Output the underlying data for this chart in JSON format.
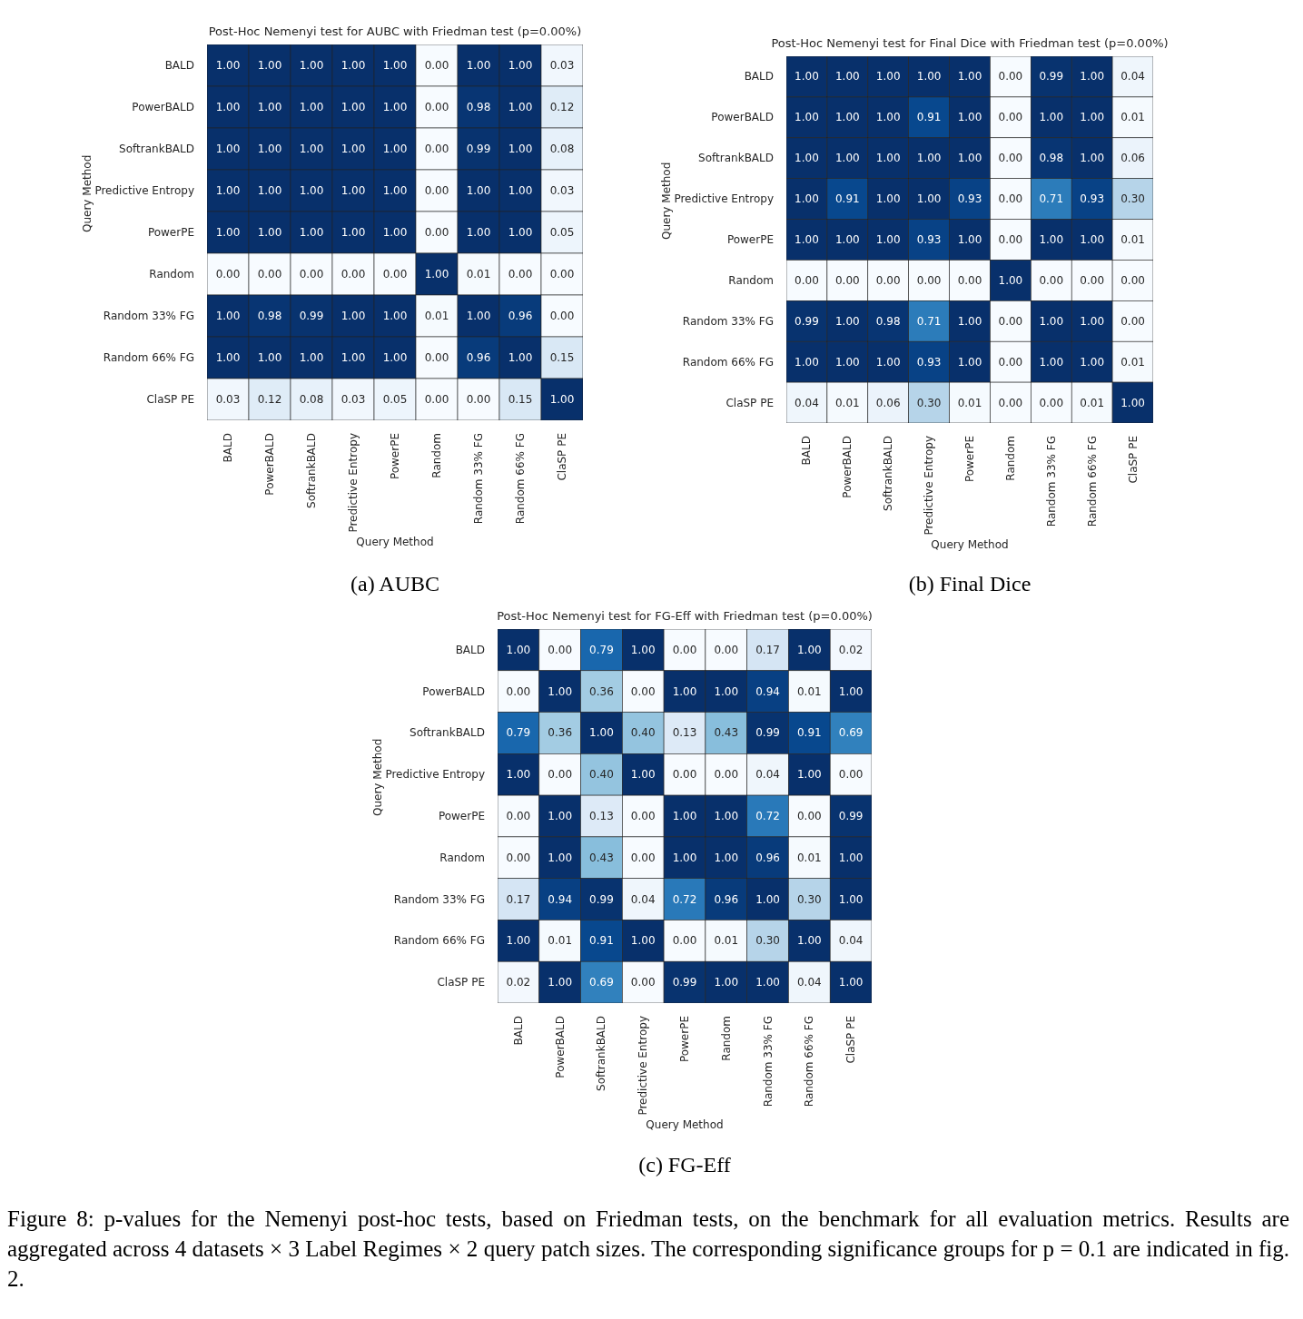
{
  "chart_data": [
    {
      "type": "heatmap",
      "title": "Post-Hoc Nemenyi test for AUBC with Friedman test (p=0.00%)",
      "xlabel": "Query Method",
      "ylabel": "Query Method",
      "data_labels": true,
      "categories": [
        "BALD",
        "PowerBALD",
        "SoftrankBALD",
        "Predictive Entropy",
        "PowerPE",
        "Random",
        "Random 33% FG",
        "Random 66% FG",
        "ClaSP PE"
      ],
      "y_categories": [
        "BALD",
        "PowerBALD",
        "SoftrankBALD",
        "Predictive Entropy",
        "PowerPE",
        "Random",
        "Random 33% FG",
        "Random 66% FG",
        "ClaSP PE"
      ],
      "cells": [
        [
          1.0,
          1.0,
          1.0,
          1.0,
          1.0,
          0.0,
          1.0,
          1.0,
          0.03
        ],
        [
          1.0,
          1.0,
          1.0,
          1.0,
          1.0,
          0.0,
          0.98,
          1.0,
          0.12
        ],
        [
          1.0,
          1.0,
          1.0,
          1.0,
          1.0,
          0.0,
          0.99,
          1.0,
          0.08
        ],
        [
          1.0,
          1.0,
          1.0,
          1.0,
          1.0,
          0.0,
          1.0,
          1.0,
          0.03
        ],
        [
          1.0,
          1.0,
          1.0,
          1.0,
          1.0,
          0.0,
          1.0,
          1.0,
          0.05
        ],
        [
          0.0,
          0.0,
          0.0,
          0.0,
          0.0,
          1.0,
          0.01,
          0.0,
          0.0
        ],
        [
          1.0,
          0.98,
          0.99,
          1.0,
          1.0,
          0.01,
          1.0,
          0.96,
          0.0
        ],
        [
          1.0,
          1.0,
          1.0,
          1.0,
          1.0,
          0.0,
          0.96,
          1.0,
          0.15
        ],
        [
          0.03,
          0.12,
          0.08,
          0.03,
          0.05,
          0.0,
          0.0,
          0.15,
          1.0
        ]
      ],
      "cell_labels": [
        [
          "1.00",
          "1.00",
          "1.00",
          "1.00",
          "1.00",
          "0.00",
          "1.00",
          "1.00",
          "0.03"
        ],
        [
          "1.00",
          "1.00",
          "1.00",
          "1.00",
          "1.00",
          "0.00",
          "0.98",
          "1.00",
          "0.12"
        ],
        [
          "1.00",
          "1.00",
          "1.00",
          "1.00",
          "1.00",
          "0.00",
          "0.99",
          "1.00",
          "0.08"
        ],
        [
          "1.00",
          "1.00",
          "1.00",
          "1.00",
          "1.00",
          "0.00",
          "1.00",
          "1.00",
          "0.03"
        ],
        [
          "1.00",
          "1.00",
          "1.00",
          "1.00",
          "1.00",
          "0.00",
          "1.00",
          "1.00",
          "0.05"
        ],
        [
          "0.00",
          "0.00",
          "0.00",
          "0.00",
          "0.00",
          "1.00",
          "0.01",
          "0.00",
          "0.00"
        ],
        [
          "1.00",
          "0.98",
          "0.99",
          "1.00",
          "1.00",
          "0.01",
          "1.00",
          "0.96",
          "0.00"
        ],
        [
          "1.00",
          "1.00",
          "1.00",
          "1.00",
          "1.00",
          "0.00",
          "0.96",
          "1.00",
          "0.15"
        ],
        [
          "0.03",
          "0.12",
          "0.08",
          "0.03",
          "0.05",
          "0.00",
          "0.00",
          "0.15",
          "1.00"
        ]
      ],
      "annotations": [
        "(a) AUBC"
      ]
    },
    {
      "type": "heatmap",
      "title": "Post-Hoc Nemenyi test for Final Dice with Friedman test (p=0.00%)",
      "xlabel": "Query Method",
      "ylabel": "Query Method",
      "data_labels": true,
      "categories": [
        "BALD",
        "PowerBALD",
        "SoftrankBALD",
        "Predictive Entropy",
        "PowerPE",
        "Random",
        "Random 33% FG",
        "Random 66% FG",
        "ClaSP PE"
      ],
      "y_categories": [
        "BALD",
        "PowerBALD",
        "SoftrankBALD",
        "Predictive Entropy",
        "PowerPE",
        "Random",
        "Random 33% FG",
        "Random 66% FG",
        "ClaSP PE"
      ],
      "cells": [
        [
          1.0,
          1.0,
          1.0,
          1.0,
          1.0,
          0.0,
          0.99,
          1.0,
          0.04
        ],
        [
          1.0,
          1.0,
          1.0,
          0.91,
          1.0,
          0.0,
          1.0,
          1.0,
          0.01
        ],
        [
          1.0,
          1.0,
          1.0,
          1.0,
          1.0,
          0.0,
          0.98,
          1.0,
          0.06
        ],
        [
          1.0,
          0.91,
          1.0,
          1.0,
          0.93,
          0.0,
          0.71,
          0.93,
          0.3
        ],
        [
          1.0,
          1.0,
          1.0,
          0.93,
          1.0,
          0.0,
          1.0,
          1.0,
          0.01
        ],
        [
          0.0,
          0.0,
          0.0,
          0.0,
          0.0,
          1.0,
          0.0,
          0.0,
          0.0
        ],
        [
          0.99,
          1.0,
          0.98,
          0.71,
          1.0,
          0.0,
          1.0,
          1.0,
          0.0
        ],
        [
          1.0,
          1.0,
          1.0,
          0.93,
          1.0,
          0.0,
          1.0,
          1.0,
          0.01
        ],
        [
          0.04,
          0.01,
          0.06,
          0.3,
          0.01,
          0.0,
          0.0,
          0.01,
          1.0
        ]
      ],
      "cell_labels": [
        [
          "1.00",
          "1.00",
          "1.00",
          "1.00",
          "1.00",
          "0.00",
          "0.99",
          "1.00",
          "0.04"
        ],
        [
          "1.00",
          "1.00",
          "1.00",
          "0.91",
          "1.00",
          "0.00",
          "1.00",
          "1.00",
          "0.01"
        ],
        [
          "1.00",
          "1.00",
          "1.00",
          "1.00",
          "1.00",
          "0.00",
          "0.98",
          "1.00",
          "0.06"
        ],
        [
          "1.00",
          "0.91",
          "1.00",
          "1.00",
          "0.93",
          "0.00",
          "0.71",
          "0.93",
          "0.30"
        ],
        [
          "1.00",
          "1.00",
          "1.00",
          "0.93",
          "1.00",
          "0.00",
          "1.00",
          "1.00",
          "0.01"
        ],
        [
          "0.00",
          "0.00",
          "0.00",
          "0.00",
          "0.00",
          "1.00",
          "0.00",
          "0.00",
          "0.00"
        ],
        [
          "0.99",
          "1.00",
          "0.98",
          "0.71",
          "1.00",
          "0.00",
          "1.00",
          "1.00",
          "0.00"
        ],
        [
          "1.00",
          "1.00",
          "1.00",
          "0.93",
          "1.00",
          "0.00",
          "1.00",
          "1.00",
          "0.01"
        ],
        [
          "0.04",
          "0.01",
          "0.06",
          "0.30",
          "0.01",
          "0.00",
          "0.00",
          "0.01",
          "1.00"
        ]
      ],
      "annotations": [
        "(b) Final Dice"
      ]
    },
    {
      "type": "heatmap",
      "title": "Post-Hoc Nemenyi test for FG-Eff with Friedman test (p=0.00%)",
      "xlabel": "Query Method",
      "ylabel": "Query Method",
      "data_labels": true,
      "categories": [
        "BALD",
        "PowerBALD",
        "SoftrankBALD",
        "Predictive Entropy",
        "PowerPE",
        "Random",
        "Random 33% FG",
        "Random 66% FG",
        "ClaSP PE"
      ],
      "y_categories": [
        "BALD",
        "PowerBALD",
        "SoftrankBALD",
        "Predictive Entropy",
        "PowerPE",
        "Random",
        "Random 33% FG",
        "Random 66% FG",
        "ClaSP PE"
      ],
      "cells": [
        [
          1.0,
          0.0,
          0.79,
          1.0,
          0.0,
          0.0,
          0.17,
          1.0,
          0.02
        ],
        [
          0.0,
          1.0,
          0.36,
          0.0,
          1.0,
          1.0,
          0.94,
          0.01,
          1.0
        ],
        [
          0.79,
          0.36,
          1.0,
          0.4,
          0.13,
          0.43,
          0.99,
          0.91,
          0.69
        ],
        [
          1.0,
          0.0,
          0.4,
          1.0,
          0.0,
          0.0,
          0.04,
          1.0,
          0.0
        ],
        [
          0.0,
          1.0,
          0.13,
          0.0,
          1.0,
          1.0,
          0.72,
          0.0,
          0.99
        ],
        [
          0.0,
          1.0,
          0.43,
          0.0,
          1.0,
          1.0,
          0.96,
          0.01,
          1.0
        ],
        [
          0.17,
          0.94,
          0.99,
          0.04,
          0.72,
          0.96,
          1.0,
          0.3,
          1.0
        ],
        [
          1.0,
          0.01,
          0.91,
          1.0,
          0.0,
          0.01,
          0.3,
          1.0,
          0.04
        ],
        [
          0.02,
          1.0,
          0.69,
          0.0,
          0.99,
          1.0,
          1.0,
          0.04,
          1.0
        ]
      ],
      "cell_labels": [
        [
          "1.00",
          "0.00",
          "0.79",
          "1.00",
          "0.00",
          "0.00",
          "0.17",
          "1.00",
          "0.02"
        ],
        [
          "0.00",
          "1.00",
          "0.36",
          "0.00",
          "1.00",
          "1.00",
          "0.94",
          "0.01",
          "1.00"
        ],
        [
          "0.79",
          "0.36",
          "1.00",
          "0.40",
          "0.13",
          "0.43",
          "0.99",
          "0.91",
          "0.69"
        ],
        [
          "1.00",
          "0.00",
          "0.40",
          "1.00",
          "0.00",
          "0.00",
          "0.04",
          "1.00",
          "0.00"
        ],
        [
          "0.00",
          "1.00",
          "0.13",
          "0.00",
          "1.00",
          "1.00",
          "0.72",
          "0.00",
          "0.99"
        ],
        [
          "0.00",
          "1.00",
          "0.43",
          "0.00",
          "1.00",
          "1.00",
          "0.96",
          "0.01",
          "1.00"
        ],
        [
          "0.17",
          "0.94",
          "0.99",
          "0.04",
          "0.72",
          "0.96",
          "1.00",
          "0.30",
          "1.00"
        ],
        [
          "1.00",
          "0.01",
          "0.91",
          "1.00",
          "0.00",
          "0.01",
          "0.30",
          "1.00",
          "0.04"
        ],
        [
          "0.02",
          "1.00",
          "0.69",
          "0.00",
          "0.99",
          "1.00",
          "1.00",
          "0.04",
          "1.00"
        ]
      ],
      "annotations": [
        "(c) FG-Eff",
        "Figure 8: p-values for the Nemenyi post-hoc tests, based on Friedman tests, on the benchmark for all evaluation metrics. Results are aggregated across 4 datasets × 3 Label Regimes × 2 query patch sizes. The corresponding significance groups for p = 0.1 are indicated in fig. 2."
      ]
    }
  ]
}
